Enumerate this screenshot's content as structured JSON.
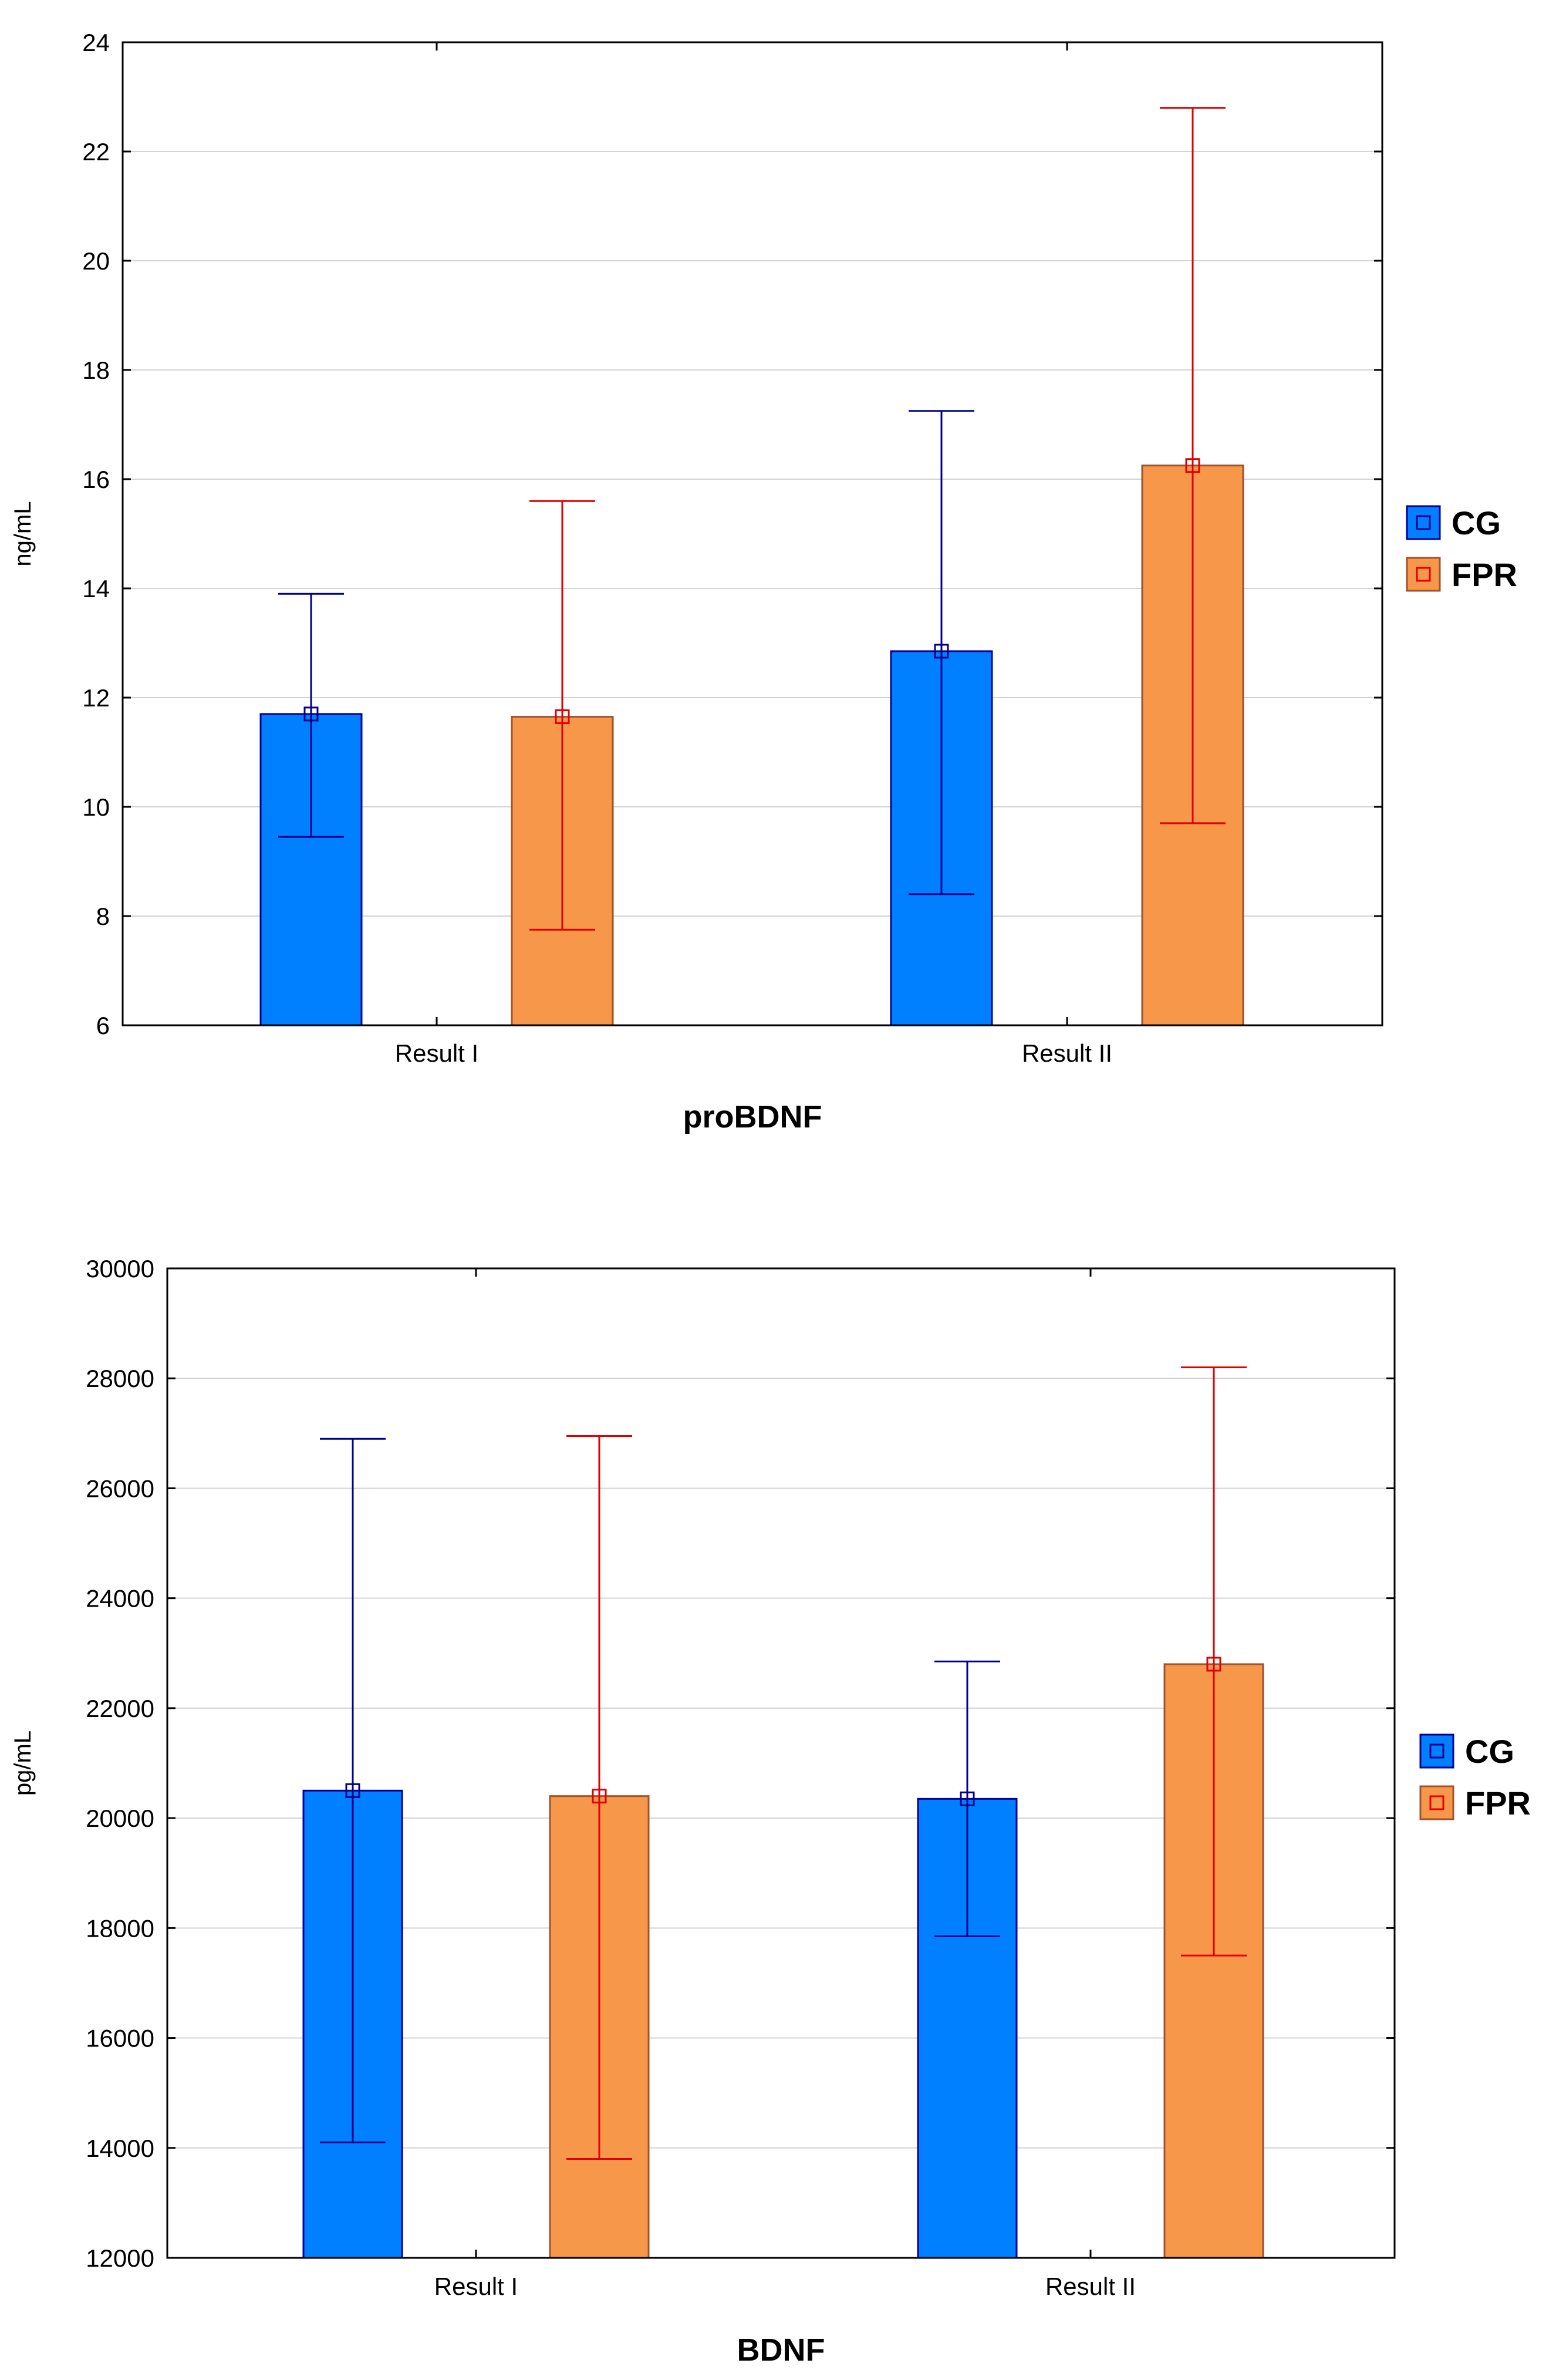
{
  "colors": {
    "cg_fill": "#0080FF",
    "cg_stroke": "#000099",
    "cg_error": "#00008B",
    "fpr_fill": "#F7974A",
    "fpr_stroke": "#A0522D",
    "fpr_error": "#E00000",
    "grid": "#D3D3D3"
  },
  "chart_data": [
    {
      "type": "bar",
      "title": "proBDNF",
      "xlabel": "proBDNF",
      "ylabel": "ng/mL",
      "categories": [
        "Result I",
        "Result II"
      ],
      "ylim": [
        6,
        24
      ],
      "yticks": [
        6,
        8,
        10,
        12,
        14,
        16,
        18,
        20,
        22,
        24
      ],
      "ytick_labels": [
        "6",
        "8",
        "10",
        "12",
        "14",
        "16",
        "18",
        "20",
        "22",
        "24"
      ],
      "legend": [
        "CG",
        "FPR"
      ],
      "legend_position": "right",
      "grid": true,
      "series": [
        {
          "name": "CG",
          "values": [
            11.7,
            12.85
          ],
          "err_low": [
            9.45,
            8.4
          ],
          "err_high": [
            13.9,
            17.25
          ]
        },
        {
          "name": "FPR",
          "values": [
            11.65,
            16.25
          ],
          "err_low": [
            7.75,
            9.7
          ],
          "err_high": [
            15.6,
            22.8
          ]
        }
      ]
    },
    {
      "type": "bar",
      "title": "BDNF",
      "xlabel": "BDNF",
      "ylabel": "pg/mL",
      "categories": [
        "Result I",
        "Result II"
      ],
      "ylim": [
        12000,
        30000
      ],
      "yticks": [
        12000,
        14000,
        16000,
        18000,
        20000,
        22000,
        24000,
        26000,
        28000,
        30000
      ],
      "ytick_labels": [
        "12000",
        "14000",
        "16000",
        "18000",
        "20000",
        "22000",
        "24000",
        "26000",
        "28000",
        "30000"
      ],
      "legend": [
        "CG",
        "FPR"
      ],
      "legend_position": "right",
      "grid": true,
      "series": [
        {
          "name": "CG",
          "values": [
            20500,
            20350
          ],
          "err_low": [
            14100,
            17850
          ],
          "err_high": [
            26900,
            22850
          ]
        },
        {
          "name": "FPR",
          "values": [
            20400,
            22800
          ],
          "err_low": [
            13800,
            17500
          ],
          "err_high": [
            26950,
            28200
          ]
        }
      ]
    }
  ]
}
